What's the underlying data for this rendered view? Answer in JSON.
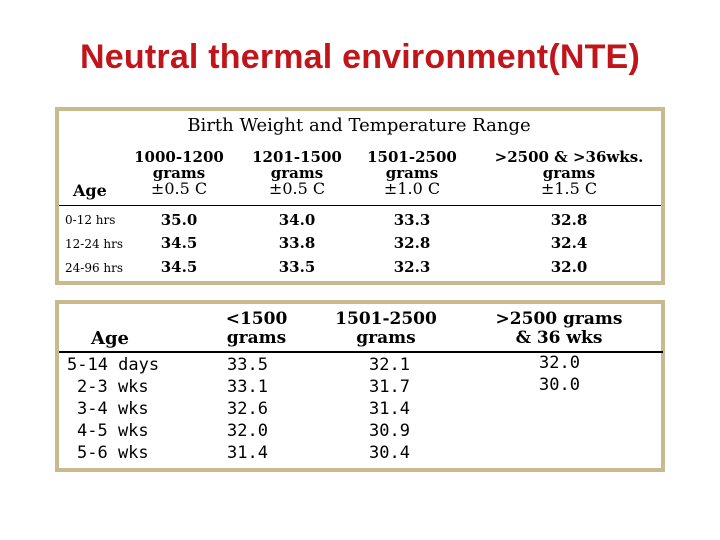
{
  "title": "Neutral thermal environment(NTE)",
  "table1": {
    "caption": "Birth Weight and Temperature Range",
    "age_header": "Age",
    "columns": [
      {
        "line1": "1000-1200",
        "line2": "grams",
        "line3": "±0.5 C"
      },
      {
        "line1": "1201-1500",
        "line2": "grams",
        "line3": "±0.5 C"
      },
      {
        "line1": "1501-2500",
        "line2": "grams",
        "line3": "±1.0 C"
      },
      {
        "line1": ">2500 & >36wks.",
        "line2": "grams",
        "line3": "±1.5 C"
      }
    ],
    "rows": [
      {
        "age": "0-12 hrs",
        "values": [
          "35.0",
          "34.0",
          "33.3",
          "32.8"
        ]
      },
      {
        "age": "12-24 hrs",
        "values": [
          "34.5",
          "33.8",
          "32.8",
          "32.4"
        ]
      },
      {
        "age": "24-96 hrs",
        "values": [
          "34.5",
          "33.5",
          "32.3",
          "32.0"
        ]
      }
    ]
  },
  "table2": {
    "age_header": "Age",
    "columns": [
      {
        "line1": "<1500",
        "line2": "grams"
      },
      {
        "line1": "1501-2500",
        "line2": "grams"
      },
      {
        "line1": ">2500 grams",
        "line2": "& 36 wks"
      }
    ],
    "rows": [
      {
        "age": "5-14 days",
        "values": [
          "33.5",
          "32.1",
          "32.0"
        ]
      },
      {
        "age": "2-3 wks",
        "values": [
          "33.1",
          "31.7",
          "30.0"
        ]
      },
      {
        "age": "3-4 wks",
        "values": [
          "32.6",
          "31.4",
          ""
        ]
      },
      {
        "age": "4-5 wks",
        "values": [
          "32.0",
          "30.9",
          ""
        ]
      },
      {
        "age": "5-6 wks",
        "values": [
          "31.4",
          "30.4",
          ""
        ]
      }
    ]
  }
}
